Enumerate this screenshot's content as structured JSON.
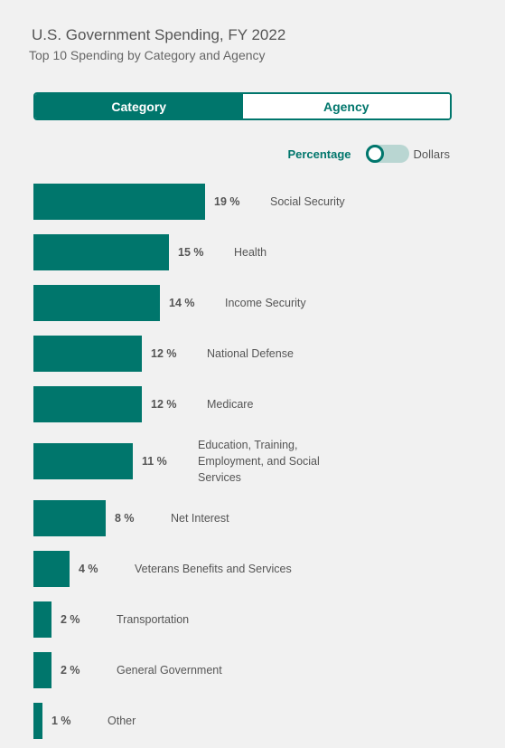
{
  "header": {
    "title": "U.S. Government Spending, FY 2022",
    "subtitle": "Top 10 Spending by Category and Agency"
  },
  "tabs": {
    "category": "Category",
    "agency": "Agency",
    "selected": "Category"
  },
  "toggle": {
    "left_label": "Percentage",
    "right_label": "Dollars",
    "selected": "Percentage"
  },
  "colors": {
    "bar": "#00766c",
    "accent": "#00766c"
  },
  "chart_data": {
    "type": "bar",
    "orientation": "horizontal",
    "categories": [
      "Social Security",
      "Health",
      "Income Security",
      "National Defense",
      "Medicare",
      "Education, Training, Employment, and Social Services",
      "Net Interest",
      "Veterans Benefits and Services",
      "Transportation",
      "General Government",
      "Other"
    ],
    "category_lines": [
      [
        "Social Security"
      ],
      [
        "Health"
      ],
      [
        "Income Security"
      ],
      [
        "National Defense"
      ],
      [
        "Medicare"
      ],
      [
        "Education, Training,",
        "Employment, and Social",
        "Services"
      ],
      [
        "Net Interest"
      ],
      [
        "Veterans Benefits and Services"
      ],
      [
        "Transportation"
      ],
      [
        "General Government"
      ],
      [
        "Other"
      ]
    ],
    "values": [
      19,
      15,
      14,
      12,
      12,
      11,
      8,
      4,
      2,
      2,
      1
    ],
    "value_labels": [
      "19 %",
      "15 %",
      "14 %",
      "12 %",
      "12 %",
      "11 %",
      "8 %",
      "4 %",
      "2 %",
      "2 %",
      "1 %"
    ],
    "unit": "%"
  }
}
